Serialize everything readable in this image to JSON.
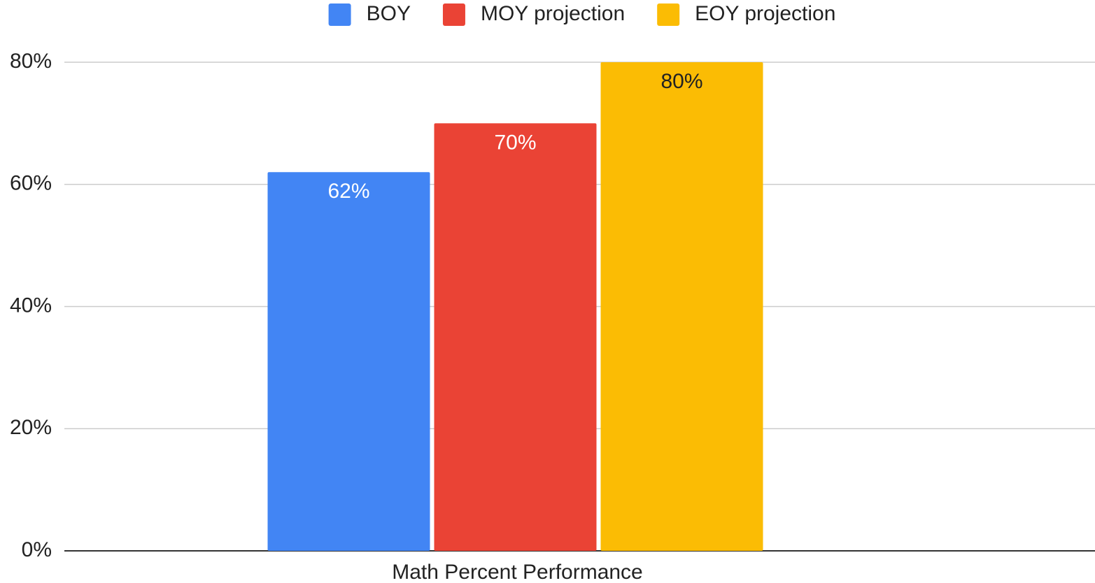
{
  "chart_data": {
    "type": "bar",
    "categories": [
      "Math Percent Performance"
    ],
    "series": [
      {
        "name": "BOY",
        "color": "#4285f4",
        "label_color": "#ffffff",
        "values": [
          62
        ],
        "value_labels": [
          "62%"
        ]
      },
      {
        "name": "MOY projection",
        "color": "#ea4335",
        "label_color": "#ffffff",
        "values": [
          70
        ],
        "value_labels": [
          "70%"
        ]
      },
      {
        "name": "EOY projection",
        "color": "#fbbc04",
        "label_color": "#222222",
        "values": [
          80
        ],
        "value_labels": [
          "80%"
        ]
      }
    ],
    "ylim": [
      0,
      80
    ],
    "yticks": [
      {
        "value": 0,
        "label": "0%"
      },
      {
        "value": 20,
        "label": "20%"
      },
      {
        "value": 40,
        "label": "40%"
      },
      {
        "value": 60,
        "label": "60%"
      },
      {
        "value": 80,
        "label": "80%"
      }
    ],
    "grid": true,
    "legend": "top"
  }
}
